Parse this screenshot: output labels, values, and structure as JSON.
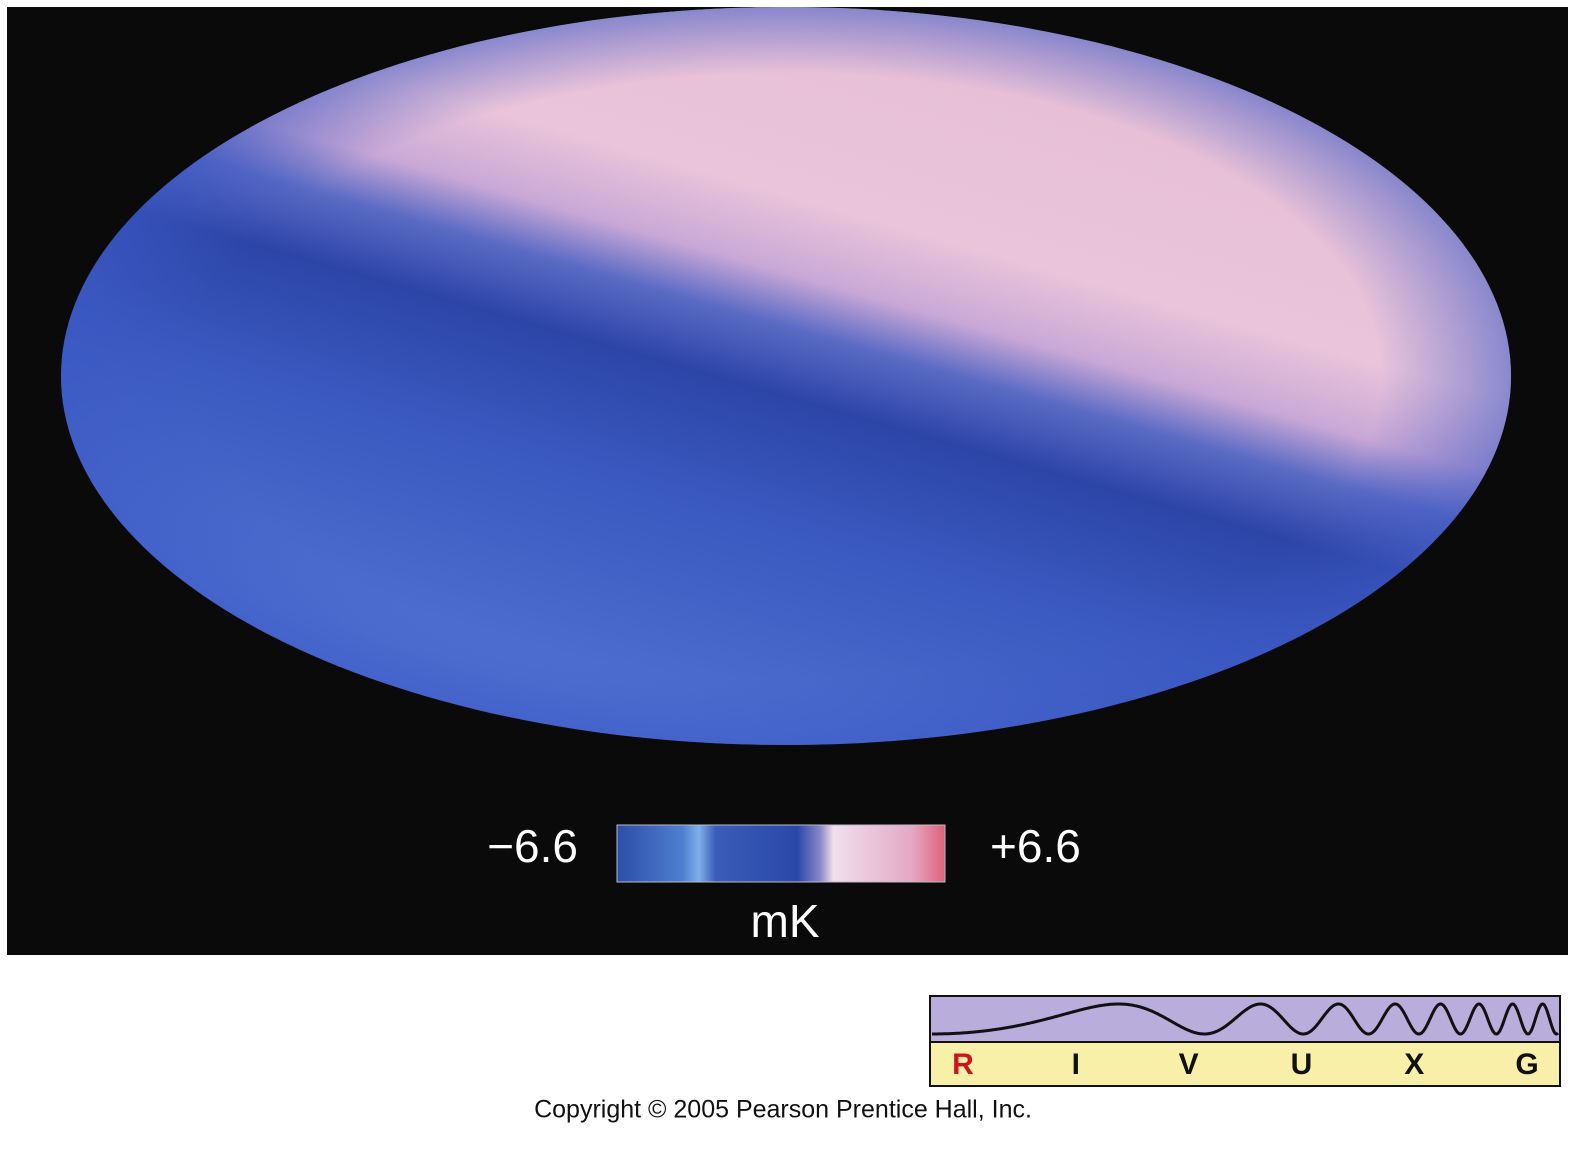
{
  "colorbar": {
    "min_label": "−6.6",
    "max_label": "+6.6",
    "unit": "mK"
  },
  "spectrum": {
    "bands": [
      "R",
      "I",
      "V",
      "U",
      "X",
      "G"
    ]
  },
  "footer": {
    "copyright": "Copyright © 2005 Pearson Prentice Hall, Inc."
  }
}
